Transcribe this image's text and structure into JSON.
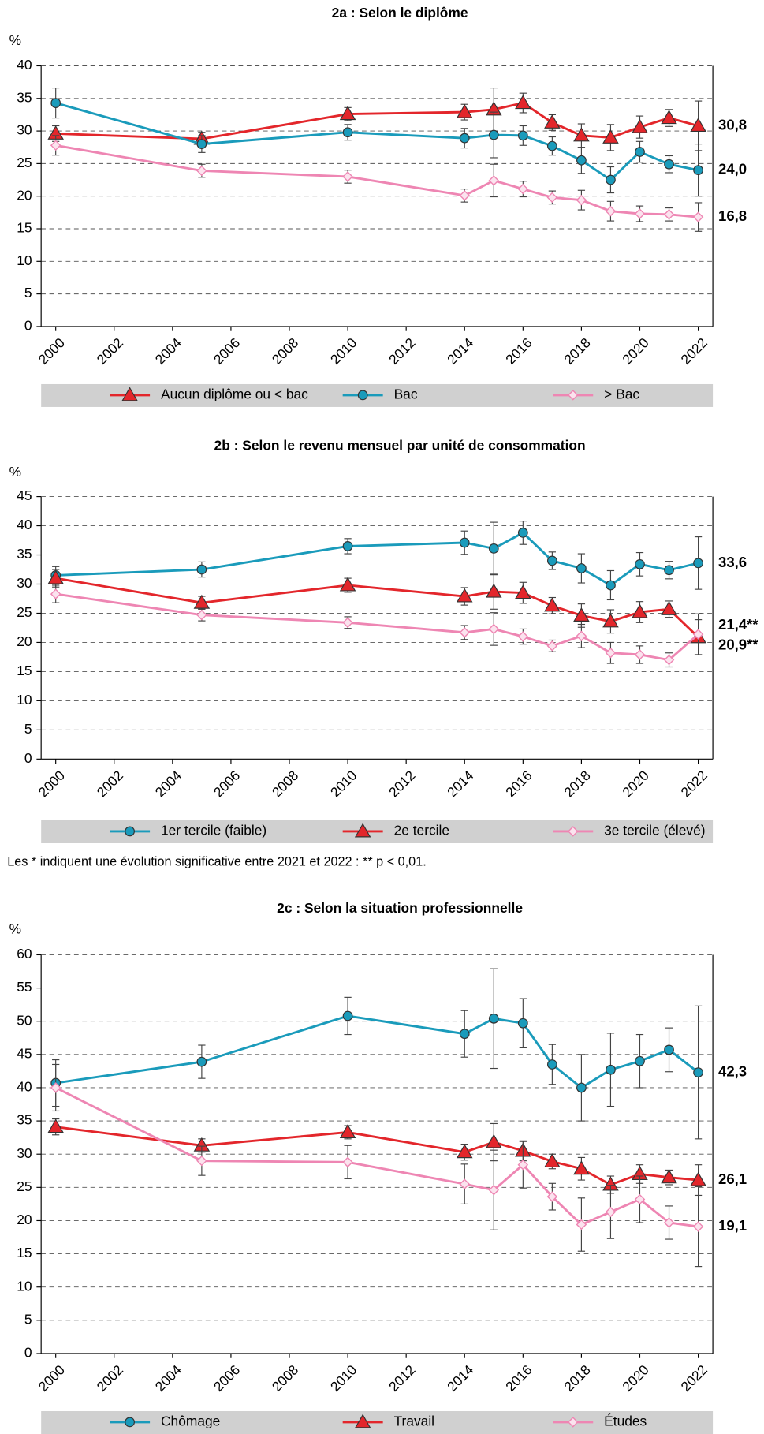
{
  "chart_data": [
    {
      "type": "line",
      "title": "2a : Selon le diplôme",
      "y_label": "%",
      "x": [
        2000,
        2005,
        2010,
        2014,
        2015,
        2016,
        2017,
        2018,
        2019,
        2020,
        2021,
        2022
      ],
      "xlim": [
        1999.5,
        2022.5
      ],
      "xticks": [
        2000,
        2002,
        2004,
        2006,
        2008,
        2010,
        2012,
        2014,
        2016,
        2018,
        2020,
        2022
      ],
      "ylim": [
        0,
        40
      ],
      "yticks": [
        0,
        5,
        10,
        15,
        20,
        25,
        30,
        35,
        40
      ],
      "grid": true,
      "series": [
        {
          "name": "Aucun diplôme ou < bac",
          "color": "#e3262b",
          "marker": "triangle",
          "values": [
            29.6,
            28.8,
            32.6,
            32.9,
            33.3,
            34.3,
            31.3,
            29.3,
            29.0,
            30.6,
            32.0,
            30.8
          ],
          "errors": [
            1.2,
            1.0,
            1.0,
            1.2,
            3.3,
            1.5,
            1.2,
            1.8,
            2.0,
            1.7,
            1.3,
            3.8
          ],
          "end_label": "30,8"
        },
        {
          "name": "Bac",
          "color": "#1a9bbb",
          "marker": "circle",
          "values": [
            34.3,
            28.0,
            29.8,
            28.9,
            29.4,
            29.3,
            27.7,
            25.5,
            22.5,
            26.8,
            24.9,
            24.0
          ],
          "errors": [
            2.3,
            1.3,
            1.2,
            1.5,
            3.5,
            1.5,
            1.4,
            2.0,
            2.0,
            1.6,
            1.3,
            4.0
          ],
          "end_label": "24,0"
        },
        {
          "name": "> Bac",
          "color": "#ee86b3",
          "marker": "diamond",
          "values": [
            27.8,
            23.9,
            23.0,
            20.1,
            22.4,
            21.1,
            19.8,
            19.4,
            17.7,
            17.3,
            17.2,
            16.8
          ],
          "errors": [
            1.5,
            1.0,
            1.0,
            1.0,
            2.5,
            1.2,
            1.0,
            1.5,
            1.5,
            1.2,
            1.0,
            2.2
          ],
          "end_label": "16,8"
        }
      ]
    },
    {
      "type": "line",
      "title": "2b : Selon le revenu mensuel par unité de consommation",
      "y_label": "%",
      "x": [
        2000,
        2005,
        2010,
        2014,
        2015,
        2016,
        2017,
        2018,
        2019,
        2020,
        2021,
        2022
      ],
      "xlim": [
        1999.5,
        2022.5
      ],
      "xticks": [
        2000,
        2002,
        2004,
        2006,
        2008,
        2010,
        2012,
        2014,
        2016,
        2018,
        2020,
        2022
      ],
      "ylim": [
        0,
        45
      ],
      "yticks": [
        0,
        5,
        10,
        15,
        20,
        25,
        30,
        35,
        40,
        45
      ],
      "grid": true,
      "series": [
        {
          "name": "1er tercile (faible)",
          "color": "#1a9bbb",
          "marker": "circle",
          "values": [
            31.5,
            32.5,
            36.5,
            37.1,
            36.1,
            38.8,
            34.0,
            32.7,
            29.8,
            33.4,
            32.4,
            33.6
          ],
          "errors": [
            1.5,
            1.3,
            1.3,
            2.0,
            4.5,
            2.0,
            1.5,
            2.5,
            2.5,
            2.0,
            1.5,
            4.5
          ],
          "end_label": "33,6"
        },
        {
          "name": "2e tercile",
          "color": "#e3262b",
          "marker": "triangle",
          "values": [
            31.0,
            26.8,
            29.8,
            27.9,
            28.7,
            28.5,
            26.3,
            24.6,
            23.6,
            25.2,
            25.7,
            20.9
          ],
          "errors": [
            1.5,
            1.1,
            1.2,
            1.5,
            3.0,
            1.8,
            1.4,
            2.0,
            2.0,
            1.8,
            1.4,
            3.0
          ],
          "end_label": "20,9**"
        },
        {
          "name": "3e tercile (élevé)",
          "color": "#ee86b3",
          "marker": "diamond",
          "values": [
            28.3,
            24.7,
            23.4,
            21.7,
            22.3,
            21.0,
            19.4,
            21.1,
            18.2,
            17.9,
            17.0,
            21.4
          ],
          "errors": [
            1.5,
            1.0,
            1.0,
            1.2,
            2.8,
            1.3,
            1.0,
            2.0,
            1.8,
            1.5,
            1.2,
            3.5
          ],
          "end_label": "21,4**"
        }
      ]
    },
    {
      "type": "line",
      "title": "2c : Selon la situation professionnelle",
      "y_label": "%",
      "x": [
        2000,
        2005,
        2010,
        2014,
        2015,
        2016,
        2017,
        2018,
        2019,
        2020,
        2021,
        2022
      ],
      "xlim": [
        1999.5,
        2022.5
      ],
      "xticks": [
        2000,
        2002,
        2004,
        2006,
        2008,
        2010,
        2012,
        2014,
        2016,
        2018,
        2020,
        2022
      ],
      "ylim": [
        0,
        60
      ],
      "yticks": [
        0,
        5,
        10,
        15,
        20,
        25,
        30,
        35,
        40,
        45,
        50,
        55,
        60
      ],
      "grid": true,
      "series": [
        {
          "name": "Chômage",
          "color": "#1a9bbb",
          "marker": "circle",
          "values": [
            40.7,
            43.9,
            50.8,
            48.1,
            50.4,
            49.7,
            43.5,
            40.0,
            42.7,
            44.0,
            45.7,
            42.3
          ],
          "errors": [
            3.5,
            2.5,
            2.8,
            3.5,
            7.5,
            3.7,
            3.0,
            5.0,
            5.5,
            4.0,
            3.3,
            10.0
          ],
          "end_label": "42,3"
        },
        {
          "name": "Travail",
          "color": "#e3262b",
          "marker": "triangle",
          "values": [
            34.1,
            31.3,
            33.3,
            30.3,
            31.8,
            30.5,
            28.9,
            27.8,
            25.4,
            27.0,
            26.5,
            26.1
          ],
          "errors": [
            1.2,
            1.0,
            1.0,
            1.2,
            2.8,
            1.5,
            1.1,
            1.7,
            1.3,
            1.4,
            1.1,
            2.3
          ],
          "end_label": "26,1"
        },
        {
          "name": "Études",
          "color": "#ee86b3",
          "marker": "diamond",
          "values": [
            40.0,
            29.0,
            28.8,
            25.5,
            24.6,
            28.4,
            23.6,
            19.4,
            21.3,
            23.2,
            19.7,
            19.1
          ],
          "errors": [
            3.5,
            2.2,
            2.5,
            3.0,
            6.0,
            3.5,
            2.0,
            4.0,
            4.0,
            3.5,
            2.5,
            6.0
          ],
          "end_label": "19,1"
        }
      ]
    }
  ],
  "note": "Les * indiquent une évolution significative entre 2021 et 2022 : ** p < 0,01."
}
